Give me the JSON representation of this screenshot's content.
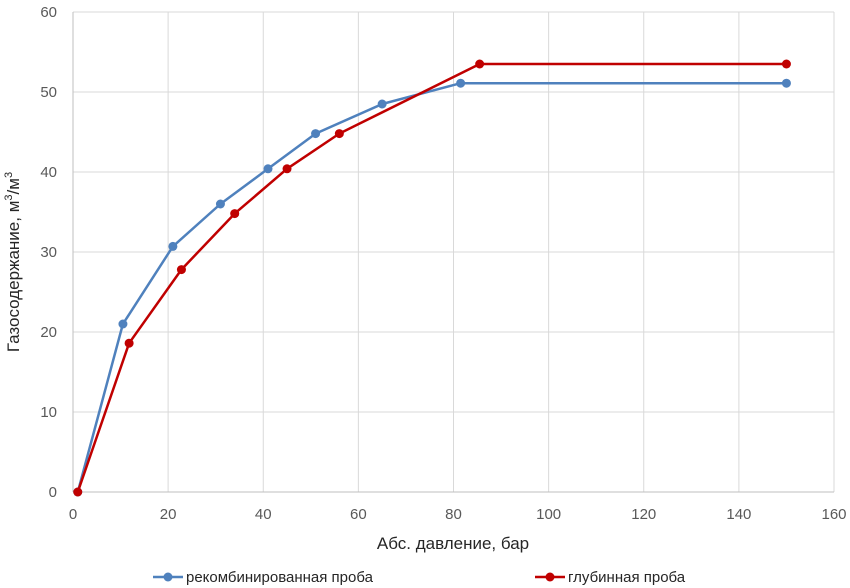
{
  "chart_data": {
    "type": "line",
    "xlabel": "Абс. давление, бар",
    "ylabel_main": "Газосодержание, м",
    "ylabel_sup1": "3",
    "ylabel_mid": "/м",
    "ylabel_sup2": "3",
    "xlim": [
      0,
      160
    ],
    "ylim": [
      0,
      60
    ],
    "xticks": [
      0,
      20,
      40,
      60,
      80,
      100,
      120,
      140,
      160
    ],
    "yticks": [
      0,
      10,
      20,
      30,
      40,
      50,
      60
    ],
    "grid": true,
    "legend_position": "bottom",
    "series": [
      {
        "name": "рекомбинированная проба",
        "color": "#4f81bd",
        "x": [
          1,
          10.5,
          21,
          31,
          41,
          51,
          65,
          81.5,
          150
        ],
        "y": [
          0,
          21,
          30.7,
          36,
          40.4,
          44.8,
          48.5,
          51.1,
          51.1
        ]
      },
      {
        "name": "глубинная проба",
        "color": "#c00000",
        "x": [
          1,
          11.8,
          22.8,
          34,
          45,
          56,
          85.5,
          150
        ],
        "y": [
          0,
          18.6,
          27.8,
          34.8,
          40.4,
          44.8,
          53.5,
          53.5
        ]
      }
    ]
  }
}
